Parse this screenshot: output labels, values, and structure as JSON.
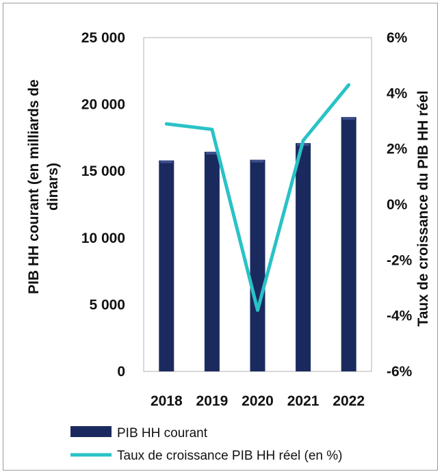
{
  "chart_data": {
    "type": "bar+line",
    "categories": [
      "2018",
      "2019",
      "2020",
      "2021",
      "2022"
    ],
    "series": [
      {
        "name": "PIB HH courant",
        "type": "bar",
        "axis": "left",
        "color": "#1b2a5e",
        "values": [
          15800,
          16450,
          15850,
          17100,
          19050
        ]
      },
      {
        "name": "Taux de croissance PIB HH réel (en %)",
        "type": "line",
        "axis": "right",
        "color": "#29c2c6",
        "values": [
          2.9,
          2.7,
          -3.8,
          2.3,
          4.3
        ]
      }
    ],
    "y_left": {
      "label": "PIB HH courant (en milliards de dinars)",
      "label_lines": [
        "PIB HH courant (en milliards de",
        "dinars)"
      ],
      "lim": [
        0,
        25000
      ],
      "ticks": [
        0,
        5000,
        10000,
        15000,
        20000,
        25000
      ],
      "tick_labels": [
        "0",
        "5 000",
        "10 000",
        "15 000",
        "20 000",
        "25 000"
      ]
    },
    "y_right": {
      "label": "Taux de croissance du PIB HH réel",
      "lim": [
        -6,
        6
      ],
      "ticks": [
        -6,
        -4,
        -2,
        0,
        2,
        4,
        6
      ],
      "tick_labels": [
        "-6%",
        "-4%",
        "-2%",
        "0%",
        "2%",
        "4%",
        "6%"
      ]
    },
    "legend_position": "bottom-left",
    "grid": false
  }
}
